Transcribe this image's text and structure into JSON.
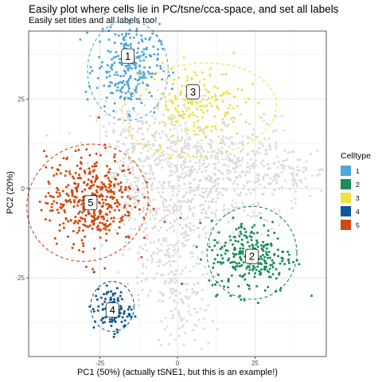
{
  "chart_data": {
    "type": "scatter",
    "title": "Easily plot where cells lie in PC/tsne/cca-space, and set all labels",
    "subtitle": "Easily set titles and all labels too!",
    "xlabel": "PC1 (50%) (actually tSNE1, but this is an example!)",
    "ylabel": "PC2 (20%)",
    "xlim": [
      -48,
      48
    ],
    "ylim": [
      -47,
      44
    ],
    "x_ticks": [
      -25,
      0,
      25
    ],
    "x_tick_labels": [
      "-25",
      "0",
      "25"
    ],
    "y_ticks": [
      -25,
      0,
      25
    ],
    "y_tick_labels": [
      "-25",
      "0",
      "25"
    ],
    "grid": true,
    "legend": {
      "title": "Celltype",
      "position": "right"
    },
    "background_points": {
      "color": "#dcdcdc",
      "x_range": [
        -24,
        48
      ],
      "y_range": [
        -45,
        32
      ]
    },
    "series": [
      {
        "name": "1",
        "color": "#4ea6dc",
        "center": [
          -16,
          34
        ],
        "spread": [
          6,
          7
        ],
        "ellipse": {
          "cx": -16,
          "cy": 33,
          "rx": 13,
          "ry": 14,
          "rotation_deg": 0
        },
        "label_at": [
          -16,
          37
        ]
      },
      {
        "name": "2",
        "color": "#1a8c5a",
        "center": [
          24,
          -19
        ],
        "spread": [
          8,
          6
        ],
        "ellipse": {
          "cx": 24,
          "cy": -18,
          "rx": 14.5,
          "ry": 13,
          "rotation_deg": 0
        },
        "label_at": [
          24,
          -19
        ]
      },
      {
        "name": "3",
        "color": "#f0e040",
        "center": [
          6,
          24
        ],
        "spread": [
          9,
          6
        ],
        "ellipse": {
          "cx": 7,
          "cy": 22,
          "rx": 25,
          "ry": 13,
          "rotation_deg": -5
        },
        "label_at": [
          5,
          27
        ]
      },
      {
        "name": "4",
        "color": "#0e5a96",
        "center": [
          -21,
          -34
        ],
        "spread": [
          3.5,
          3.5
        ],
        "ellipse": {
          "cx": -21,
          "cy": -33,
          "rx": 7,
          "ry": 7,
          "rotation_deg": 0
        },
        "label_at": [
          -21,
          -34
        ]
      },
      {
        "name": "5",
        "color": "#d14a0f",
        "center": [
          -28,
          -3
        ],
        "spread": [
          8.5,
          7.5
        ],
        "ellipse": {
          "cx": -29,
          "cy": -4,
          "rx": 20,
          "ry": 16,
          "rotation_deg": -32
        },
        "label_at": [
          -28,
          -4
        ]
      }
    ]
  }
}
